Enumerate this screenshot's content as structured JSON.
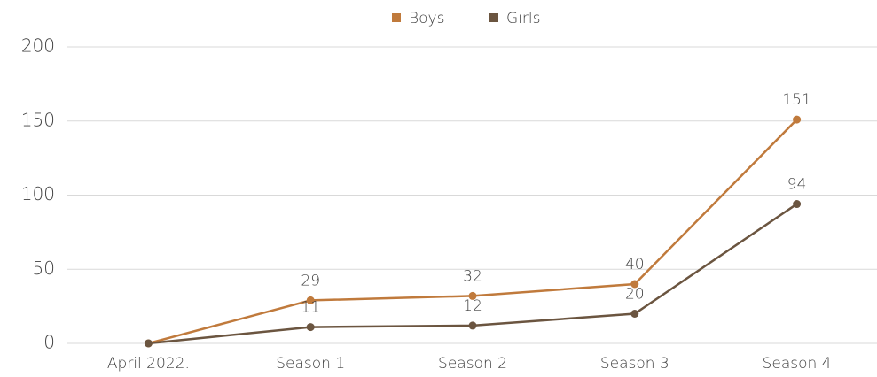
{
  "chart_data": {
    "type": "line",
    "categories": [
      "April 2022.",
      "Season 1",
      "Season 2",
      "Season 3",
      "Season 4"
    ],
    "series": [
      {
        "name": "Boys",
        "color": "#c07a3c",
        "values": [
          0,
          29,
          32,
          40,
          151
        ],
        "value_labels": [
          null,
          "29",
          "32",
          "40",
          "151"
        ]
      },
      {
        "name": "Girls",
        "color": "#6b5540",
        "values": [
          0,
          11,
          12,
          20,
          94
        ],
        "value_labels": [
          null,
          "11",
          "12",
          "20",
          "94"
        ]
      }
    ],
    "ylim": [
      0,
      200
    ],
    "yticks": [
      0,
      50,
      100,
      150,
      200
    ],
    "grid": true,
    "legend": "top"
  }
}
